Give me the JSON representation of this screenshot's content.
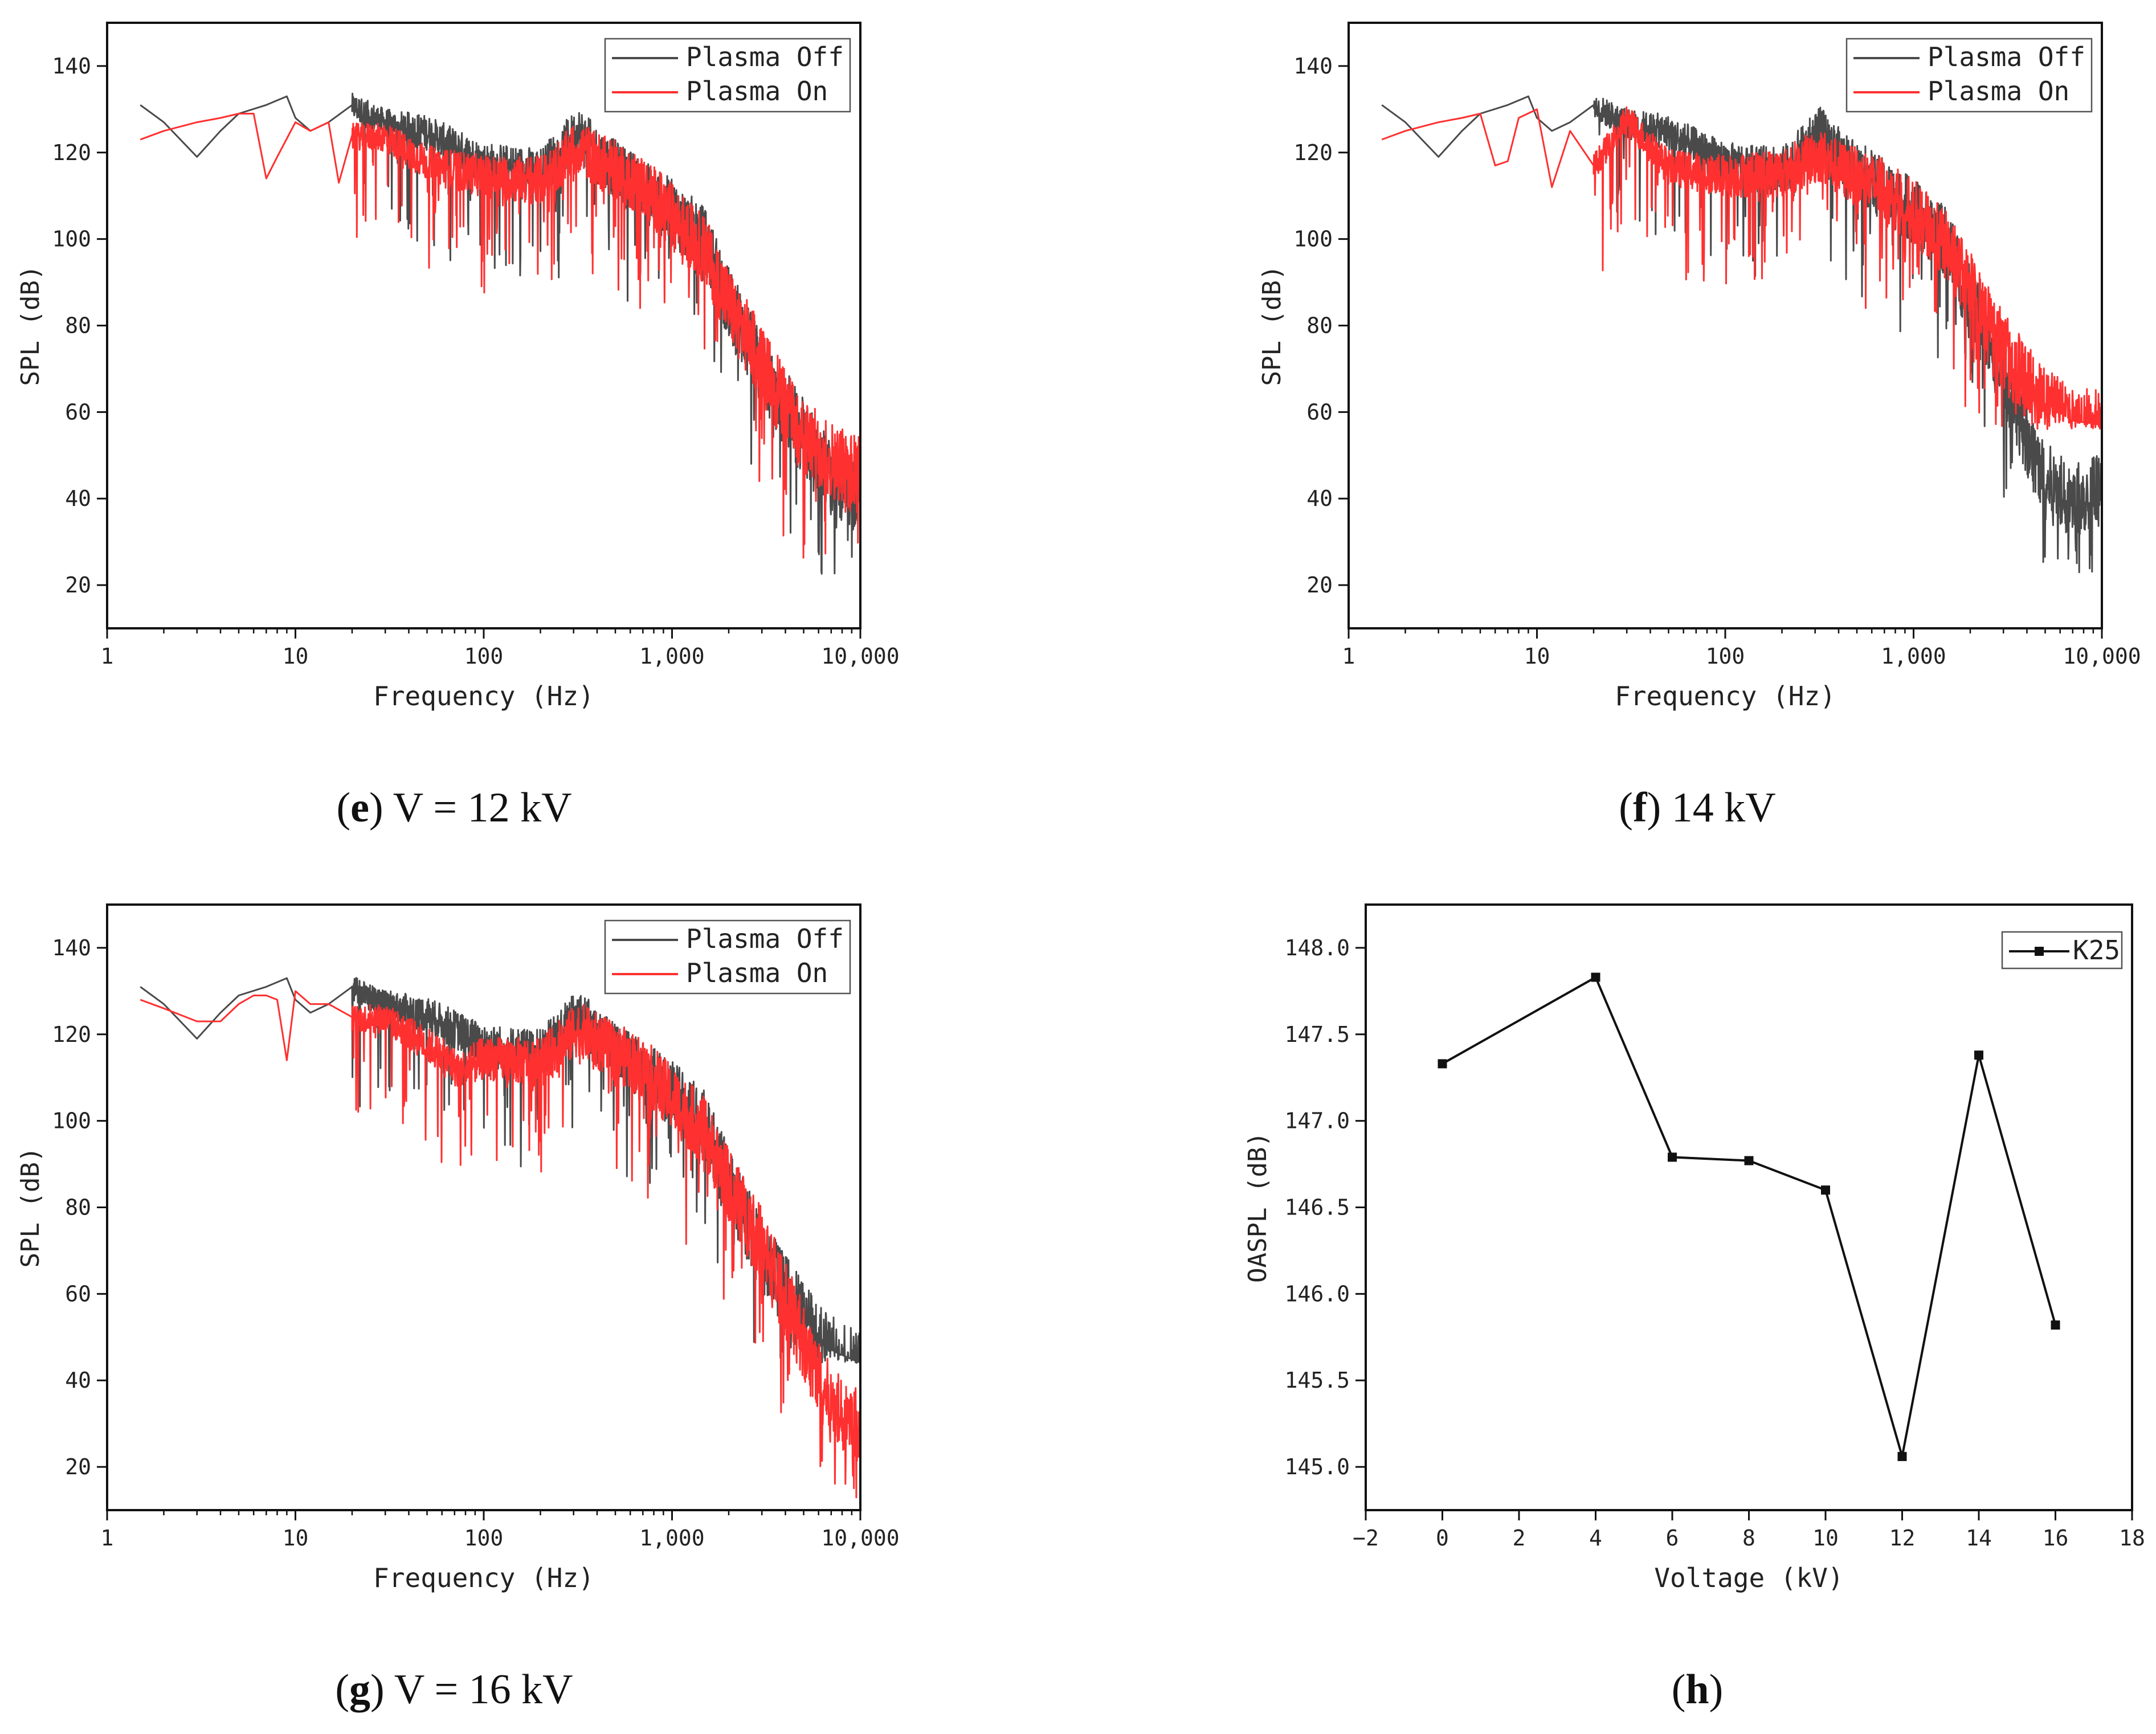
{
  "colors": {
    "plasma_off": "#4a4a4a",
    "plasma_on": "#ff3030",
    "k25": "#111111",
    "axis": "#111111"
  },
  "chart_data": [
    {
      "id": "e",
      "type": "line",
      "caption_letter": "e",
      "caption_text": " V = 12 kV",
      "xscale": "log",
      "xlabel": "Frequency (Hz)",
      "ylabel": "SPL (dB)",
      "xlim": [
        1,
        10000
      ],
      "ylim": [
        10,
        150
      ],
      "xtick_labels": [
        "1",
        "10",
        "100",
        "1,000",
        "10,000"
      ],
      "ytick_labels": [
        "20",
        "40",
        "60",
        "80",
        "100",
        "120",
        "140"
      ],
      "legend": [
        "Plasma Off",
        "Plasma On"
      ],
      "legend_position": "top-right",
      "series": [
        {
          "name": "Plasma Off",
          "x": [
            1.5,
            2,
            3,
            4,
            5,
            7,
            9,
            10,
            12,
            15,
            20,
            30,
            50,
            100,
            200,
            320,
            400,
            700,
            1000,
            1500,
            2000,
            3000,
            5000,
            7000,
            10000
          ],
          "y": [
            131,
            127,
            119,
            125,
            129,
            131,
            133,
            128,
            125,
            127,
            131,
            127,
            125,
            118,
            116,
            125,
            120,
            112,
            107,
            100,
            86,
            70,
            55,
            45,
            41
          ],
          "noise_high": 48,
          "noise_low": 22
        },
        {
          "name": "Plasma On",
          "x": [
            1.5,
            2,
            3,
            4,
            5,
            6,
            7,
            8,
            10,
            12,
            15,
            17,
            20,
            30,
            50,
            100,
            200,
            320,
            400,
            700,
            1000,
            1500,
            2000,
            3000,
            5000,
            7000,
            10000
          ],
          "y": [
            123,
            125,
            127,
            128,
            129,
            129,
            114,
            119,
            127,
            125,
            127,
            113,
            124,
            124,
            118,
            115,
            114,
            122,
            119,
            113,
            106,
            98,
            86,
            72,
            55,
            50,
            46
          ],
          "noise_high": 48,
          "noise_low": 25
        }
      ]
    },
    {
      "id": "f",
      "type": "line",
      "caption_letter": "f",
      "caption_text": " 14 kV",
      "xscale": "log",
      "xlabel": "Frequency (Hz)",
      "ylabel": "SPL (dB)",
      "xlim": [
        1,
        10000
      ],
      "ylim": [
        10,
        150
      ],
      "xtick_labels": [
        "1",
        "10",
        "100",
        "1,000",
        "10,000"
      ],
      "ytick_labels": [
        "20",
        "40",
        "60",
        "80",
        "100",
        "120",
        "140"
      ],
      "legend": [
        "Plasma Off",
        "Plasma On"
      ],
      "legend_position": "top-right",
      "series": [
        {
          "name": "Plasma Off",
          "x": [
            1.5,
            2,
            3,
            4,
            5,
            7,
            9,
            10,
            12,
            15,
            20,
            30,
            50,
            100,
            200,
            320,
            400,
            700,
            1000,
            1500,
            2000,
            3000,
            4000,
            5000,
            7000,
            10000
          ],
          "y": [
            131,
            127,
            119,
            125,
            129,
            131,
            133,
            128,
            125,
            127,
            131,
            127,
            125,
            118,
            116,
            125,
            120,
            112,
            107,
            100,
            86,
            70,
            55,
            45,
            40,
            44
          ],
          "noise_high": 48,
          "noise_low": 22
        },
        {
          "name": "Plasma On",
          "x": [
            1.5,
            2,
            3,
            4,
            5,
            6,
            7,
            8,
            10,
            12,
            15,
            20,
            30,
            50,
            100,
            200,
            320,
            400,
            700,
            1000,
            1500,
            2000,
            3000,
            5000,
            7000,
            10000
          ],
          "y": [
            123,
            125,
            127,
            128,
            129,
            117,
            118,
            128,
            130,
            112,
            125,
            117,
            128,
            117,
            115,
            116,
            120,
            117,
            112,
            107,
            99,
            90,
            75,
            62,
            58,
            57
          ],
          "noise_high": 58,
          "noise_low": 56
        }
      ]
    },
    {
      "id": "g",
      "type": "line",
      "caption_letter": "g",
      "caption_text": " V = 16 kV",
      "xscale": "log",
      "xlabel": "Frequency (Hz)",
      "ylabel": "SPL (dB)",
      "xlim": [
        1,
        10000
      ],
      "ylim": [
        10,
        150
      ],
      "xtick_labels": [
        "1",
        "10",
        "100",
        "1,000",
        "10,000"
      ],
      "ytick_labels": [
        "20",
        "40",
        "60",
        "80",
        "100",
        "120",
        "140"
      ],
      "legend": [
        "Plasma Off",
        "Plasma On"
      ],
      "legend_position": "top-right",
      "series": [
        {
          "name": "Plasma Off",
          "x": [
            1.5,
            2,
            3,
            4,
            5,
            7,
            9,
            10,
            12,
            15,
            20,
            30,
            50,
            100,
            200,
            320,
            400,
            700,
            1000,
            1500,
            2000,
            3000,
            5000,
            7000,
            10000
          ],
          "y": [
            131,
            127,
            119,
            125,
            129,
            131,
            133,
            128,
            125,
            127,
            131,
            127,
            125,
            118,
            116,
            125,
            120,
            112,
            107,
            100,
            86,
            70,
            55,
            47,
            44
          ],
          "noise_high": 48,
          "noise_low": 44
        },
        {
          "name": "Plasma On",
          "x": [
            1.5,
            2,
            3,
            4,
            5,
            6,
            7,
            8,
            9,
            10,
            12,
            15,
            20,
            30,
            50,
            75,
            100,
            200,
            320,
            400,
            700,
            1000,
            1500,
            2000,
            3000,
            5000,
            7000,
            10000
          ],
          "y": [
            128,
            126,
            123,
            123,
            127,
            129,
            129,
            128,
            114,
            130,
            127,
            127,
            124,
            124,
            118,
            112,
            115,
            114,
            122,
            119,
            113,
            106,
            98,
            86,
            72,
            50,
            35,
            30
          ],
          "noise_high": 35,
          "noise_low": 12
        }
      ]
    },
    {
      "id": "h",
      "type": "line",
      "caption_letter": "h",
      "caption_text": "",
      "xscale": "linear",
      "xlabel": "Voltage (kV)",
      "ylabel": "OASPL (dB)",
      "xlim": [
        -2,
        18
      ],
      "ylim": [
        144.75,
        148.25
      ],
      "xtick_labels": [
        "−2",
        "0",
        "2",
        "4",
        "6",
        "8",
        "10",
        "12",
        "14",
        "16",
        "18"
      ],
      "ytick_labels": [
        "145.0",
        "145.5",
        "146.0",
        "146.5",
        "147.0",
        "147.5",
        "148.0"
      ],
      "legend": [
        "K25"
      ],
      "legend_position": "top-right",
      "series": [
        {
          "name": "K25",
          "x": [
            0,
            4,
            6,
            8,
            10,
            12,
            14,
            16
          ],
          "y": [
            147.33,
            147.83,
            146.79,
            146.77,
            146.6,
            145.06,
            147.38,
            145.82
          ]
        }
      ]
    }
  ]
}
